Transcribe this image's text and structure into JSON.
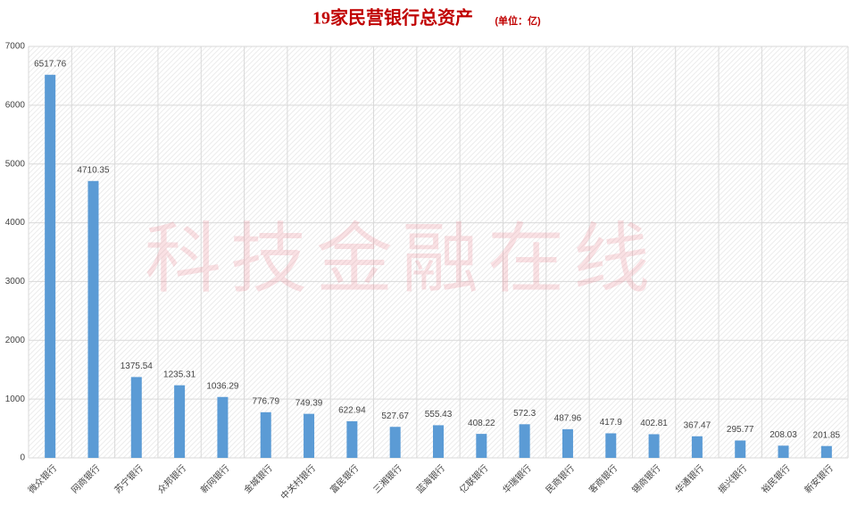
{
  "chart_data": {
    "type": "bar",
    "title": "19家民营银行总资产",
    "unit": "(单位：亿)",
    "watermark": "科技金融在线",
    "categories": [
      "微众银行",
      "网商银行",
      "苏宁银行",
      "众邦银行",
      "新网银行",
      "金城银行",
      "中关村银行",
      "富民银行",
      "三湘银行",
      "蓝海银行",
      "亿联银行",
      "华瑞银行",
      "民商银行",
      "客商银行",
      "锡商银行",
      "华通银行",
      "振兴银行",
      "裕民银行",
      "新安银行"
    ],
    "values": [
      6517.76,
      4710.35,
      1375.54,
      1235.31,
      1036.29,
      776.79,
      749.39,
      622.94,
      527.67,
      555.43,
      408.22,
      572.3,
      487.96,
      417.9,
      402.81,
      367.47,
      295.77,
      208.03,
      201.85
    ],
    "color": "#5b9bd5",
    "ylim": [
      0,
      7000
    ],
    "yticks": [
      0,
      1000,
      2000,
      3000,
      4000,
      5000,
      6000,
      7000
    ],
    "grid": true
  }
}
